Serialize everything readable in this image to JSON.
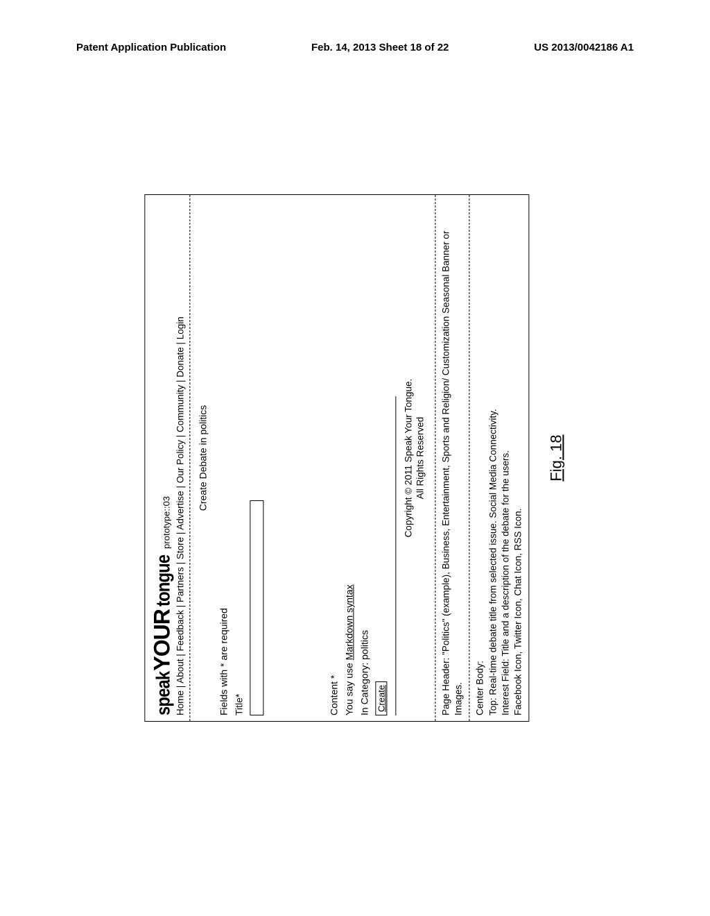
{
  "document_header": {
    "left": "Patent Application Publication",
    "center": "Feb. 14, 2013  Sheet 18 of 22",
    "right": "US 2013/0042186 A1"
  },
  "logo": {
    "speak": "speak",
    "your": "YOUR",
    "tongue": "tongue",
    "prototype": "prototype::03"
  },
  "nav": {
    "items": "Home | About | Feedback | Partners | Store | Advertise | Our Policy | Community | Donate | Login"
  },
  "form": {
    "heading": "Create Debate in politics",
    "required_note": "Fields with * are required",
    "title_label": "Title*",
    "content_label": "Content *",
    "markdown_prefix": "You say use ",
    "markdown_link": "Markdown syntax",
    "category_line": "In Category: politics",
    "create_button": "Create"
  },
  "footer": {
    "copyright": "Copyright © 2011 Speak Your Tongue.",
    "rights": "All Rights Reserved"
  },
  "description": {
    "page_header": "Page Header: \"Politics\" (example), Business, Entertainment, Sports and Religion/ Customization Seasonal Banner or Images.",
    "center_body_label": "Center Body:",
    "top_line": "Top: Real-time debate title from selected issue. Social Media Connectivity.",
    "interest_line": "Interest Field: Title and a description of the debate for the users.",
    "icons_line": "Facebook Icon, Twitter Icon, Chat Icon, RSS Icon."
  },
  "figure_caption": "Fig. 18"
}
